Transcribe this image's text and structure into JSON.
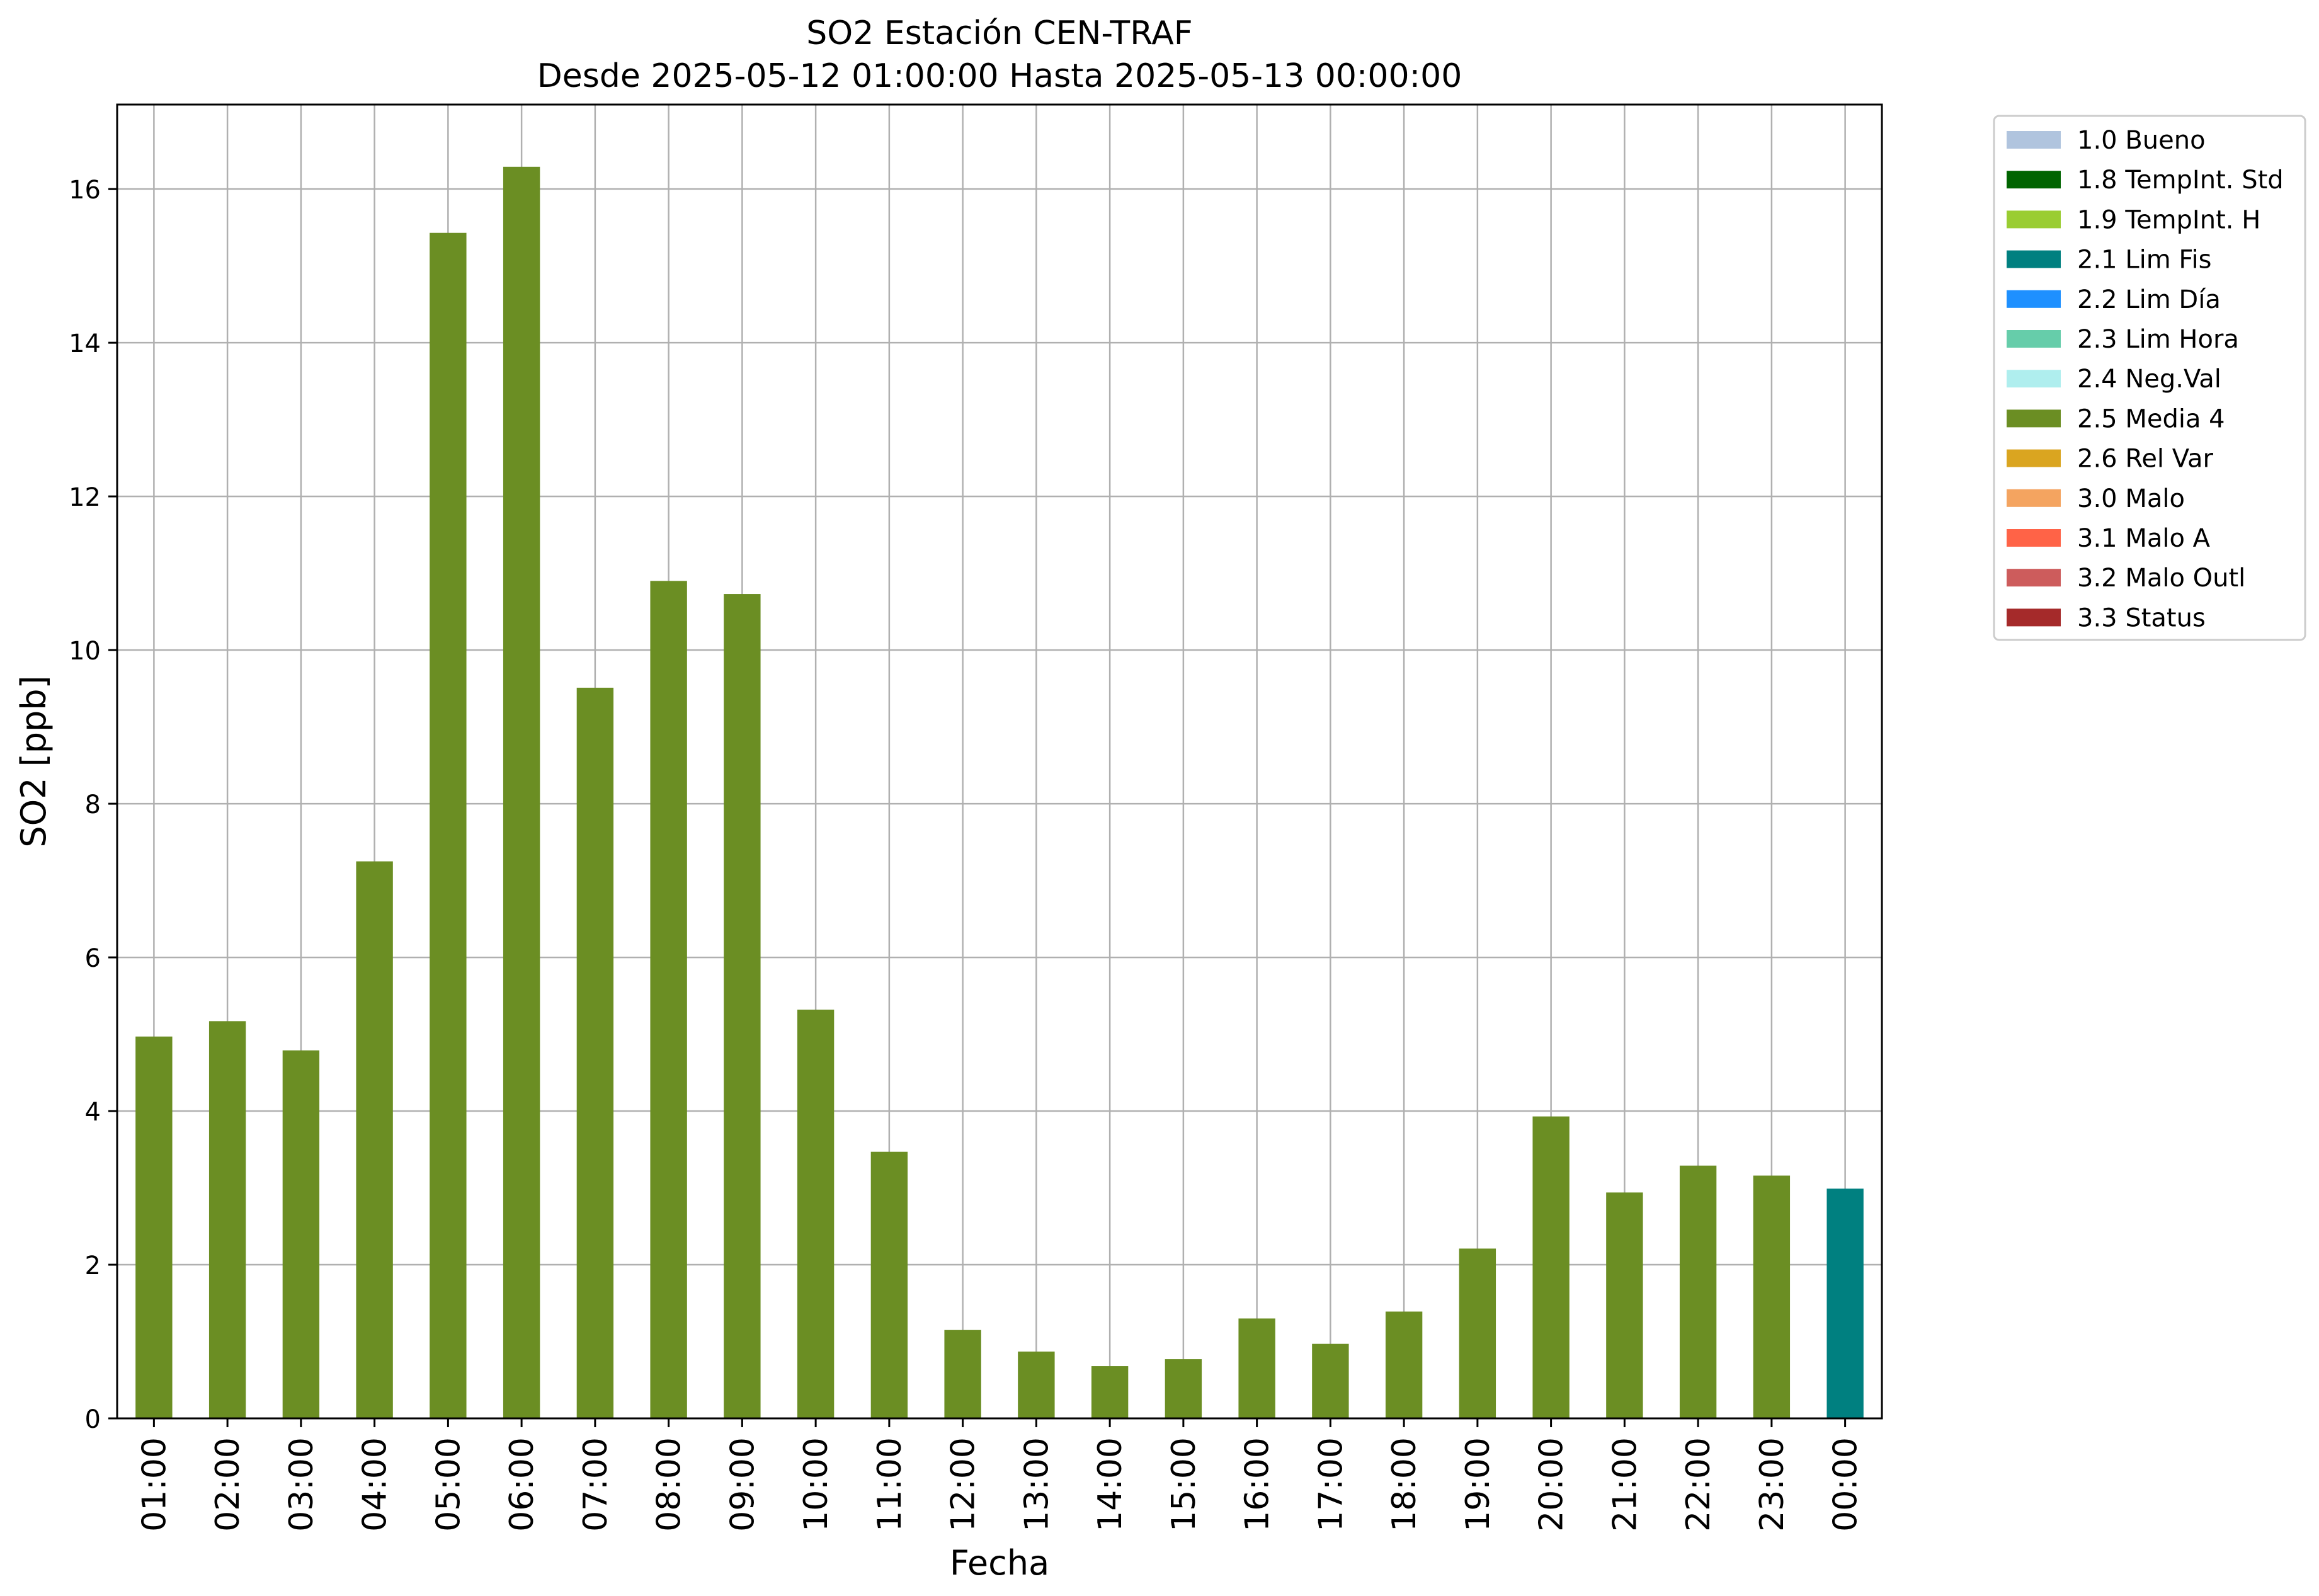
{
  "chart_data": {
    "type": "bar",
    "title": "SO2 Estación CEN-TRAF",
    "subtitle": "Desde 2025-05-12 01:00:00 Hasta 2025-05-13 00:00:00",
    "xlabel": "Fecha",
    "ylabel": "SO2 [ppb]",
    "ylim": [
      0,
      17.1
    ],
    "yticks": [
      0,
      2,
      4,
      6,
      8,
      10,
      12,
      14,
      16
    ],
    "grid": true,
    "legend_position": "outside-right-top",
    "categories": [
      "01:00",
      "02:00",
      "03:00",
      "04:00",
      "05:00",
      "06:00",
      "07:00",
      "08:00",
      "09:00",
      "10:00",
      "11:00",
      "12:00",
      "13:00",
      "14:00",
      "15:00",
      "16:00",
      "17:00",
      "18:00",
      "19:00",
      "20:00",
      "21:00",
      "22:00",
      "23:00",
      "00:00"
    ],
    "values": [
      4.97,
      5.17,
      4.79,
      7.25,
      15.43,
      16.29,
      9.51,
      10.9,
      10.73,
      5.32,
      3.47,
      1.15,
      0.87,
      0.68,
      0.77,
      1.3,
      0.97,
      1.39,
      2.21,
      3.93,
      2.94,
      3.29,
      3.16,
      2.99
    ],
    "flags": [
      "2.5 Media 4",
      "2.5 Media 4",
      "2.5 Media 4",
      "2.5 Media 4",
      "2.5 Media 4",
      "2.5 Media 4",
      "2.5 Media 4",
      "2.5 Media 4",
      "2.5 Media 4",
      "2.5 Media 4",
      "2.5 Media 4",
      "2.5 Media 4",
      "2.5 Media 4",
      "2.5 Media 4",
      "2.5 Media 4",
      "2.5 Media 4",
      "2.5 Media 4",
      "2.5 Media 4",
      "2.5 Media 4",
      "2.5 Media 4",
      "2.5 Media 4",
      "2.5 Media 4",
      "2.5 Media 4",
      "2.1 Lim Fis"
    ],
    "legend": [
      {
        "label": "1.0 Bueno",
        "color": "#b0c4de"
      },
      {
        "label": "1.8 TempInt. Std",
        "color": "#006400"
      },
      {
        "label": "1.9 TempInt. H",
        "color": "#9acd32"
      },
      {
        "label": "2.1 Lim Fis",
        "color": "#008080"
      },
      {
        "label": "2.2 Lim Día",
        "color": "#1e90ff"
      },
      {
        "label": "2.3 Lim Hora",
        "color": "#66cdaa"
      },
      {
        "label": "2.4 Neg.Val",
        "color": "#afeeee"
      },
      {
        "label": "2.5 Media 4",
        "color": "#6b8e23"
      },
      {
        "label": "2.6 Rel Var",
        "color": "#daa520"
      },
      {
        "label": "3.0 Malo",
        "color": "#f4a460"
      },
      {
        "label": "3.1 Malo A",
        "color": "#ff6347"
      },
      {
        "label": "3.2 Malo Outl",
        "color": "#cd5c5c"
      },
      {
        "label": "3.3 Status",
        "color": "#a52a2a"
      }
    ]
  }
}
